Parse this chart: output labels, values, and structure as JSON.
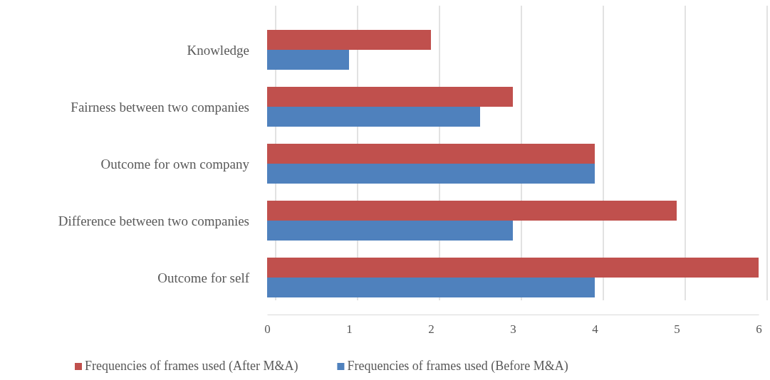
{
  "chart_data": {
    "type": "bar",
    "orientation": "horizontal",
    "categories": [
      "Knowledge",
      "Fairness between two companies",
      "Outcome for own company",
      "Difference between two companies",
      "Outcome for self"
    ],
    "series": [
      {
        "name": "Frequencies of frames used  (After M&A)",
        "color": "#c0504d",
        "values": [
          2,
          3,
          4,
          5,
          6
        ]
      },
      {
        "name": "Frequencies of frames used (Before M&A)",
        "color": "#4f81bd",
        "values": [
          1,
          2.6,
          4,
          3,
          4
        ]
      }
    ],
    "xlim": [
      0,
      6
    ],
    "xticks": [
      0,
      1,
      2,
      3,
      4,
      5,
      6
    ],
    "grid": "x",
    "legend": "bottom"
  }
}
